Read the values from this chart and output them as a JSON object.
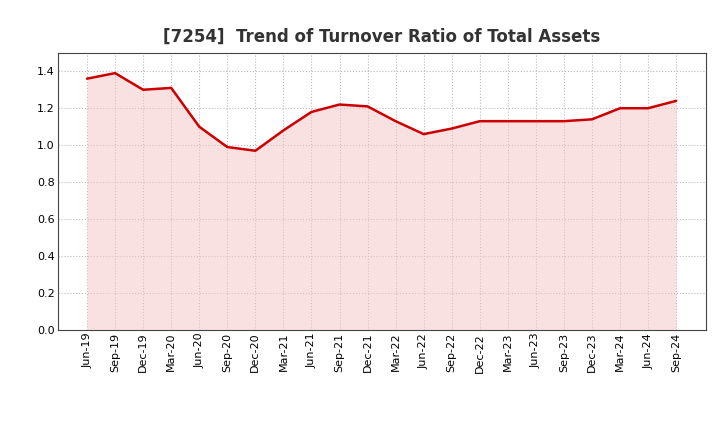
{
  "title": "[7254]  Trend of Turnover Ratio of Total Assets",
  "x_labels": [
    "Jun-19",
    "Sep-19",
    "Dec-19",
    "Mar-20",
    "Jun-20",
    "Sep-20",
    "Dec-20",
    "Mar-21",
    "Jun-21",
    "Sep-21",
    "Dec-21",
    "Mar-22",
    "Jun-22",
    "Sep-22",
    "Dec-22",
    "Mar-23",
    "Jun-23",
    "Sep-23",
    "Dec-23",
    "Mar-24",
    "Jun-24",
    "Sep-24"
  ],
  "values": [
    1.36,
    1.39,
    1.3,
    1.31,
    1.1,
    0.99,
    0.97,
    1.08,
    1.18,
    1.22,
    1.21,
    1.13,
    1.06,
    1.09,
    1.13,
    1.13,
    1.13,
    1.13,
    1.14,
    1.2,
    1.2,
    1.24
  ],
  "line_color": "#cc0000",
  "fill_color": "#f7c5c5",
  "background_color": "#ffffff",
  "plot_bg_color": "#ffffff",
  "grid_color": "#bbbbbb",
  "ylim": [
    0.0,
    1.5
  ],
  "yticks": [
    0.0,
    0.2,
    0.4,
    0.6,
    0.8,
    1.0,
    1.2,
    1.4
  ],
  "title_fontsize": 12,
  "tick_fontsize": 8,
  "line_width": 1.8
}
